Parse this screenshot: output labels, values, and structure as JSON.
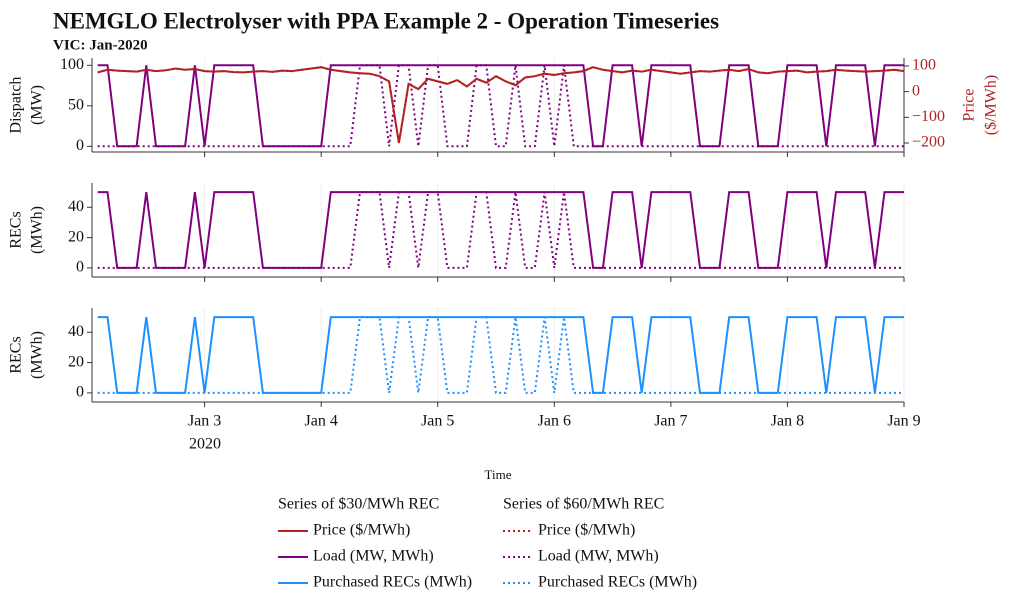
{
  "chart_data": {
    "type": "line",
    "title": "NEMGLO Electrolyser with PPA Example 2 - Operation Timeseries",
    "subtitle": "VIC: Jan-2020",
    "xlabel": "Time",
    "x_year_label": "2020",
    "xlim": [
      2.034,
      9
    ],
    "xticks": [
      {
        "value": 3,
        "label": "Jan 3"
      },
      {
        "value": 4,
        "label": "Jan 4"
      },
      {
        "value": 5,
        "label": "Jan 5"
      },
      {
        "value": 6,
        "label": "Jan 6"
      },
      {
        "value": 7,
        "label": "Jan 7"
      },
      {
        "value": 8,
        "label": "Jan 8"
      },
      {
        "value": 9,
        "label": "Jan 9"
      }
    ],
    "grid": true,
    "x": [
      2.083,
      2.167,
      2.25,
      2.333,
      2.417,
      2.5,
      2.583,
      2.667,
      2.75,
      2.833,
      2.917,
      3,
      3.083,
      3.167,
      3.25,
      3.333,
      3.417,
      3.5,
      3.583,
      3.667,
      3.75,
      3.833,
      3.917,
      4,
      4.083,
      4.167,
      4.25,
      4.333,
      4.417,
      4.5,
      4.583,
      4.667,
      4.75,
      4.833,
      4.917,
      5,
      5.083,
      5.167,
      5.25,
      5.333,
      5.417,
      5.5,
      5.583,
      5.667,
      5.75,
      5.833,
      5.917,
      6,
      6.083,
      6.167,
      6.25,
      6.333,
      6.417,
      6.5,
      6.583,
      6.667,
      6.75,
      6.833,
      6.917,
      7,
      7.083,
      7.167,
      7.25,
      7.333,
      7.417,
      7.5,
      7.583,
      7.667,
      7.75,
      7.833,
      7.917,
      8,
      8.083,
      8.167,
      8.25,
      8.333,
      8.417,
      8.5,
      8.583,
      8.667,
      8.75,
      8.833,
      8.917,
      9
    ],
    "panels": [
      {
        "ylabel": [
          "Dispatch",
          "(MW)"
        ],
        "ylim": [
          -7,
          109
        ],
        "yticks": [
          0,
          50,
          100
        ],
        "y2label": [
          "Price",
          "($/MWh)"
        ],
        "y2lim": [
          -235,
          131
        ],
        "y2color": "#b22222",
        "y2ticks": [
          {
            "value": -200,
            "label": "−200"
          },
          {
            "value": -100,
            "label": "−100"
          },
          0,
          100
        ]
      },
      {
        "ylabel": [
          "RECs",
          "(MWh)"
        ],
        "ylim": [
          -6,
          56
        ],
        "yticks": [
          0,
          20,
          40
        ]
      },
      {
        "ylabel": [
          "RECs",
          "(MWh)"
        ],
        "ylim": [
          -6,
          56
        ],
        "yticks": [
          0,
          20,
          40
        ]
      }
    ],
    "groups": [
      {
        "title": "Series of $30/MWh REC",
        "dash": "solid",
        "series": [
          {
            "name": "Price ($/MWh)",
            "color": "#b22222",
            "panel": 0,
            "axis": "y2",
            "values": [
              75,
              85,
              82,
              80,
              78,
              85,
              80,
              83,
              90,
              85,
              88,
              80,
              78,
              80,
              76,
              75,
              78,
              80,
              77,
              82,
              80,
              85,
              90,
              95,
              85,
              80,
              75,
              72,
              70,
              60,
              40,
              -200,
              30,
              10,
              50,
              40,
              30,
              45,
              20,
              50,
              35,
              60,
              40,
              25,
              55,
              60,
              70,
              65,
              72,
              75,
              80,
              95,
              85,
              80,
              75,
              82,
              78,
              85,
              80,
              75,
              70,
              75,
              80,
              78,
              82,
              85,
              80,
              88,
              75,
              72,
              78,
              80,
              82,
              75,
              78,
              80,
              85,
              82,
              80,
              78,
              80,
              82,
              85,
              80
            ]
          },
          {
            "name": "Load (MW, MWh)",
            "color": "#800080",
            "panel": 0,
            "rec_panel": 1,
            "values": [
              100,
              100,
              0,
              0,
              0,
              100,
              0,
              0,
              0,
              0,
              100,
              0,
              100,
              100,
              100,
              100,
              100,
              0,
              0,
              0,
              0,
              0,
              0,
              0,
              100,
              100,
              100,
              100,
              100,
              100,
              100,
              100,
              100,
              100,
              100,
              100,
              100,
              100,
              100,
              100,
              100,
              100,
              100,
              100,
              100,
              100,
              100,
              100,
              100,
              100,
              100,
              0,
              0,
              100,
              100,
              100,
              0,
              100,
              100,
              100,
              100,
              100,
              0,
              0,
              0,
              100,
              100,
              100,
              0,
              0,
              0,
              100,
              100,
              100,
              100,
              0,
              100,
              100,
              100,
              100,
              0,
              100,
              100,
              100
            ],
            "rec_values": [
              50,
              50,
              0,
              0,
              0,
              50,
              0,
              0,
              0,
              0,
              50,
              0,
              50,
              50,
              50,
              50,
              50,
              0,
              0,
              0,
              0,
              0,
              0,
              0,
              50,
              50,
              50,
              50,
              50,
              50,
              50,
              50,
              50,
              50,
              50,
              50,
              50,
              50,
              50,
              50,
              50,
              50,
              50,
              50,
              50,
              50,
              50,
              50,
              50,
              50,
              50,
              0,
              0,
              50,
              50,
              50,
              0,
              50,
              50,
              50,
              50,
              50,
              0,
              0,
              0,
              50,
              50,
              50,
              0,
              0,
              0,
              50,
              50,
              50,
              50,
              0,
              50,
              50,
              50,
              50,
              0,
              50,
              50,
              50
            ]
          },
          {
            "name": "Purchased RECs (MWh)",
            "color": "#1e90ff",
            "panel": 2,
            "values": [
              50,
              50,
              0,
              0,
              0,
              50,
              0,
              0,
              0,
              0,
              50,
              0,
              50,
              50,
              50,
              50,
              50,
              0,
              0,
              0,
              0,
              0,
              0,
              0,
              50,
              50,
              50,
              50,
              50,
              50,
              50,
              50,
              50,
              50,
              50,
              50,
              50,
              50,
              50,
              50,
              50,
              50,
              50,
              50,
              50,
              50,
              50,
              50,
              50,
              50,
              50,
              0,
              0,
              50,
              50,
              50,
              0,
              50,
              50,
              50,
              50,
              50,
              0,
              0,
              0,
              50,
              50,
              50,
              0,
              0,
              0,
              50,
              50,
              50,
              50,
              0,
              50,
              50,
              50,
              50,
              0,
              50,
              50,
              50
            ]
          }
        ]
      },
      {
        "title": "Series of $60/MWh REC",
        "dash": "dotted",
        "series": [
          {
            "name": "Price ($/MWh)",
            "color": "#b22222",
            "panel": 0,
            "axis": "y2",
            "values": [
              75,
              85,
              82,
              80,
              78,
              85,
              80,
              83,
              90,
              85,
              88,
              80,
              78,
              80,
              76,
              75,
              78,
              80,
              77,
              82,
              80,
              85,
              90,
              95,
              85,
              80,
              75,
              72,
              70,
              60,
              40,
              -200,
              30,
              10,
              50,
              40,
              30,
              45,
              20,
              50,
              35,
              60,
              40,
              25,
              55,
              60,
              70,
              65,
              72,
              75,
              80,
              95,
              85,
              80,
              75,
              82,
              78,
              85,
              80,
              75,
              70,
              75,
              80,
              78,
              82,
              85,
              80,
              88,
              75,
              72,
              78,
              80,
              82,
              75,
              78,
              80,
              85,
              82,
              80,
              78,
              80,
              82,
              85,
              80
            ]
          },
          {
            "name": "Load (MW, MWh)",
            "color": "#800080",
            "panel": 0,
            "rec_panel": 1,
            "values": [
              0,
              0,
              0,
              0,
              0,
              0,
              0,
              0,
              0,
              0,
              0,
              0,
              0,
              0,
              0,
              0,
              0,
              0,
              0,
              0,
              0,
              0,
              0,
              0,
              0,
              0,
              0,
              100,
              100,
              100,
              0,
              100,
              100,
              0,
              100,
              100,
              0,
              0,
              0,
              100,
              100,
              0,
              0,
              100,
              0,
              0,
              100,
              0,
              100,
              0,
              0,
              0,
              0,
              0,
              0,
              0,
              0,
              0,
              0,
              0,
              0,
              0,
              0,
              0,
              0,
              0,
              0,
              0,
              0,
              0,
              0,
              0,
              0,
              0,
              0,
              0,
              0,
              0,
              0,
              0,
              0,
              0,
              0,
              0
            ],
            "rec_values": [
              0,
              0,
              0,
              0,
              0,
              0,
              0,
              0,
              0,
              0,
              0,
              0,
              0,
              0,
              0,
              0,
              0,
              0,
              0,
              0,
              0,
              0,
              0,
              0,
              0,
              0,
              0,
              50,
              50,
              50,
              0,
              50,
              50,
              0,
              50,
              50,
              0,
              0,
              0,
              50,
              50,
              0,
              0,
              50,
              0,
              0,
              50,
              0,
              50,
              0,
              0,
              0,
              0,
              0,
              0,
              0,
              0,
              0,
              0,
              0,
              0,
              0,
              0,
              0,
              0,
              0,
              0,
              0,
              0,
              0,
              0,
              0,
              0,
              0,
              0,
              0,
              0,
              0,
              0,
              0,
              0,
              0,
              0,
              0
            ]
          },
          {
            "name": "Purchased RECs (MWh)",
            "color": "#1e90ff",
            "panel": 2,
            "values": [
              0,
              0,
              0,
              0,
              0,
              0,
              0,
              0,
              0,
              0,
              0,
              0,
              0,
              0,
              0,
              0,
              0,
              0,
              0,
              0,
              0,
              0,
              0,
              0,
              0,
              0,
              0,
              50,
              50,
              50,
              0,
              50,
              50,
              0,
              50,
              50,
              0,
              0,
              0,
              50,
              50,
              0,
              0,
              50,
              0,
              0,
              50,
              0,
              50,
              0,
              0,
              0,
              0,
              0,
              0,
              0,
              0,
              0,
              0,
              0,
              0,
              0,
              0,
              0,
              0,
              0,
              0,
              0,
              0,
              0,
              0,
              0,
              0,
              0,
              0,
              0,
              0,
              0,
              0,
              0,
              0,
              0,
              0,
              0
            ]
          }
        ]
      }
    ]
  }
}
